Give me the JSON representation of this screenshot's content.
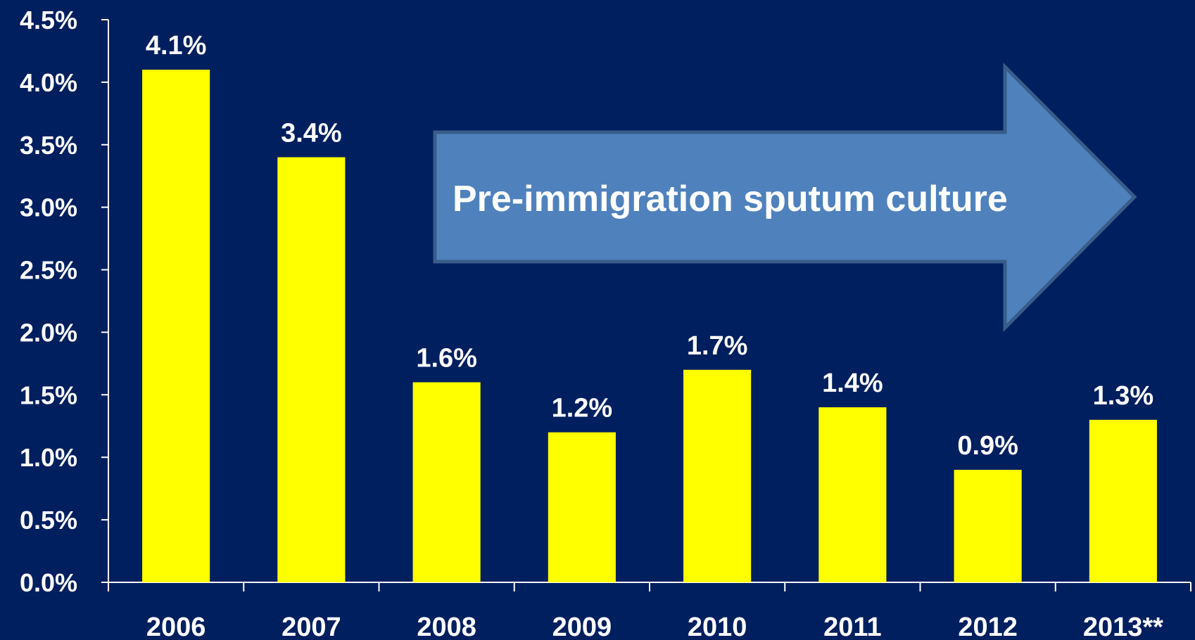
{
  "chart_data": {
    "type": "bar",
    "categories": [
      "2006",
      "2007",
      "2008",
      "2009",
      "2010",
      "2011",
      "2012",
      "2013**"
    ],
    "values": [
      4.1,
      3.4,
      1.6,
      1.2,
      1.7,
      1.4,
      0.9,
      1.3
    ],
    "value_labels": [
      "4.1%",
      "3.4%",
      "1.6%",
      "1.2%",
      "1.7%",
      "1.4%",
      "0.9%",
      "1.3%"
    ],
    "ylim": [
      0,
      4.5
    ],
    "y_ticks": [
      0,
      0.5,
      1.0,
      1.5,
      2.0,
      2.5,
      3.0,
      3.5,
      4.0,
      4.5
    ],
    "y_tick_labels": [
      "0.0%",
      "0.5%",
      "1.0%",
      "1.5%",
      "2.0%",
      "2.5%",
      "3.0%",
      "3.5%",
      "4.0%",
      "4.5%"
    ],
    "grid": false,
    "legend": "none",
    "annotation": "Pre-immigration sputum culture"
  },
  "colors": {
    "background": "#001f5f",
    "bar": "#ffff00",
    "axis": "#ffffff",
    "text": "#ffffff",
    "arrow_fill": "#4f81bd",
    "arrow_stroke": "#385d8a"
  }
}
